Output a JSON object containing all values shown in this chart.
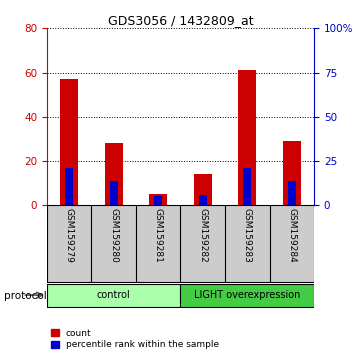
{
  "title": "GDS3056 / 1432809_at",
  "samples": [
    "GSM159279",
    "GSM159280",
    "GSM159281",
    "GSM159282",
    "GSM159283",
    "GSM159284"
  ],
  "count_values": [
    57,
    28,
    5,
    14,
    61,
    29
  ],
  "percentile_values": [
    21,
    14,
    5,
    6,
    21,
    14
  ],
  "left_ylim": [
    0,
    80
  ],
  "right_ylim": [
    0,
    100
  ],
  "left_yticks": [
    0,
    20,
    40,
    60,
    80
  ],
  "right_yticks": [
    0,
    25,
    50,
    75,
    100
  ],
  "right_yticklabels": [
    "0",
    "25",
    "50",
    "75",
    "100%"
  ],
  "bar_color_count": "#cc0000",
  "bar_color_pct": "#0000cc",
  "protocol_groups": [
    {
      "label": "control",
      "indices": [
        0,
        1,
        2
      ],
      "color": "#aaffaa"
    },
    {
      "label": "LIGHT overexpression",
      "indices": [
        3,
        4,
        5
      ],
      "color": "#44cc44"
    }
  ],
  "left_axis_color": "#cc0000",
  "right_axis_color": "#0000cc",
  "legend_count_label": "count",
  "legend_pct_label": "percentile rank within the sample",
  "protocol_label": "protocol"
}
